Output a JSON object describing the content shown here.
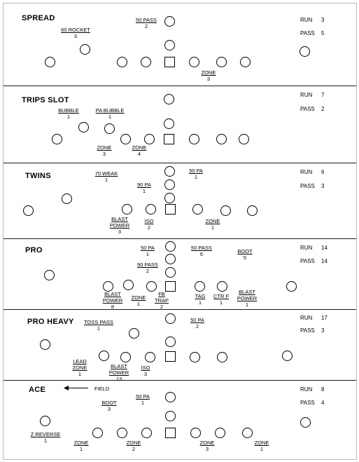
{
  "sections": [
    {
      "title": "SPREAD",
      "run_label": "RUN",
      "run_value": "3",
      "pass_label": "PASS",
      "pass_value": "5",
      "plays": [
        {
          "name": "60 ROCKET",
          "count": "3"
        },
        {
          "name": "50 PASS",
          "count": "2"
        },
        {
          "name": "ZONE",
          "count": "3"
        }
      ]
    },
    {
      "title": "TRIPS SLOT",
      "run_label": "RUN",
      "run_value": "7",
      "pass_label": "PASS",
      "pass_value": "2",
      "plays": [
        {
          "name": "BUBBLE",
          "count": "1"
        },
        {
          "name": "PA BUBBLE",
          "count": "1"
        },
        {
          "name": "ZONE",
          "count": "3"
        },
        {
          "name": "ZONE",
          "count": "4"
        }
      ]
    },
    {
      "title": "TWINS",
      "run_label": "RUN",
      "run_value": "6",
      "pass_label": "PASS",
      "pass_value": "3",
      "plays": [
        {
          "name": "70 WEAK",
          "count": "1"
        },
        {
          "name": "90 PA",
          "count": "1"
        },
        {
          "name": "50 PA",
          "count": "1"
        },
        {
          "name": "BLAST POWER",
          "count": "3"
        },
        {
          "name": "ISO",
          "count": "2"
        },
        {
          "name": "ZONE",
          "count": "1"
        }
      ]
    },
    {
      "title": "PRO",
      "run_label": "RUN",
      "run_value": "14",
      "pass_label": "PASS",
      "pass_value": "14",
      "plays": [
        {
          "name": "50 PA",
          "count": "1"
        },
        {
          "name": "90 PASS",
          "count": "2"
        },
        {
          "name": "50 PASS",
          "count": "6"
        },
        {
          "name": "BOOT",
          "count": "5"
        },
        {
          "name": "BLAST POWER",
          "count": "8"
        },
        {
          "name": "ZONE",
          "count": "1"
        },
        {
          "name": "FB TRAP",
          "count": "2"
        },
        {
          "name": "TAG",
          "count": "1"
        },
        {
          "name": "CTR F",
          "count": "1"
        },
        {
          "name": "BLAST POWER",
          "count": "1"
        }
      ]
    },
    {
      "title": "PRO HEAVY",
      "run_label": "RUN",
      "run_value": "17",
      "pass_label": "PASS",
      "pass_value": "3",
      "plays": [
        {
          "name": "TOSS PASS",
          "count": "1"
        },
        {
          "name": "50 PA",
          "count": "2"
        },
        {
          "name": "LEAD ZONE",
          "count": "1"
        },
        {
          "name": "BLAST POWER",
          "count": "13"
        },
        {
          "name": "ISO",
          "count": "3"
        }
      ]
    },
    {
      "title": "ACE",
      "run_label": "RUN",
      "run_value": "8",
      "pass_label": "PASS",
      "pass_value": "4",
      "field_label": "FIELD",
      "plays": [
        {
          "name": "BOOT",
          "count": "3"
        },
        {
          "name": "50 PA",
          "count": "1"
        },
        {
          "name": "Z REVERSE",
          "count": "1"
        },
        {
          "name": "ZONE",
          "count": "1"
        },
        {
          "name": "ZONE",
          "count": "2"
        },
        {
          "name": "ZONE",
          "count": "3"
        },
        {
          "name": "ZONE",
          "count": "1"
        }
      ]
    }
  ]
}
